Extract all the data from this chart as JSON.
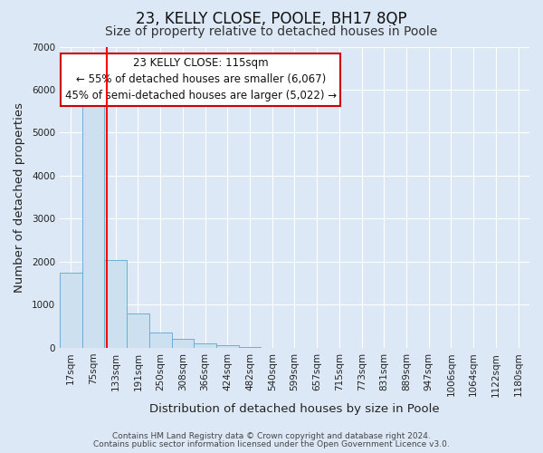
{
  "title": "23, KELLY CLOSE, POOLE, BH17 8QP",
  "subtitle": "Size of property relative to detached houses in Poole",
  "xlabel": "Distribution of detached houses by size in Poole",
  "ylabel": "Number of detached properties",
  "footnote1": "Contains HM Land Registry data © Crown copyright and database right 2024.",
  "footnote2": "Contains public sector information licensed under the Open Government Licence v3.0.",
  "bar_labels": [
    "17sqm",
    "75sqm",
    "133sqm",
    "191sqm",
    "250sqm",
    "308sqm",
    "366sqm",
    "424sqm",
    "482sqm",
    "540sqm",
    "599sqm",
    "657sqm",
    "715sqm",
    "773sqm",
    "831sqm",
    "889sqm",
    "947sqm",
    "1006sqm",
    "1064sqm",
    "1122sqm",
    "1180sqm"
  ],
  "bar_values": [
    1750,
    5750,
    2050,
    800,
    360,
    210,
    100,
    60,
    15,
    5,
    2,
    1,
    1,
    0,
    0,
    0,
    0,
    0,
    0,
    0,
    0
  ],
  "bar_color": "#cce0f0",
  "bar_edge_color": "#6bafd6",
  "red_line_x": 1.6,
  "property_label": "23 KELLY CLOSE: 115sqm",
  "annotation_line1": "← 55% of detached houses are smaller (6,067)",
  "annotation_line2": "45% of semi-detached houses are larger (5,022) →",
  "ylim": [
    0,
    7000
  ],
  "yticks": [
    0,
    1000,
    2000,
    3000,
    4000,
    5000,
    6000,
    7000
  ],
  "bg_color": "#dce8f5",
  "plot_bg_color": "#dce8f5",
  "grid_color": "#ffffff",
  "annotation_box_facecolor": "#ffffff",
  "annotation_box_edgecolor": "#cc0000",
  "title_fontsize": 12,
  "subtitle_fontsize": 10,
  "axis_label_fontsize": 9.5,
  "tick_fontsize": 7.5,
  "annotation_fontsize": 8.5,
  "footnote_fontsize": 6.5
}
